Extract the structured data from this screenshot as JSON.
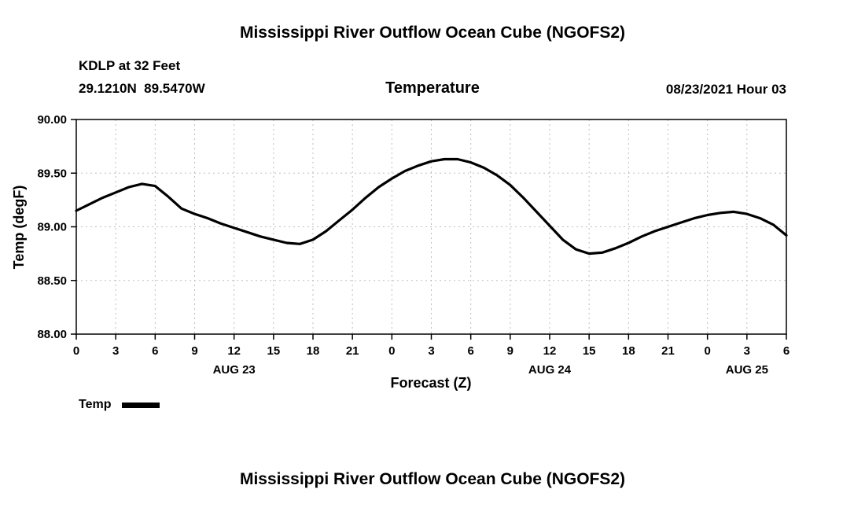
{
  "page": {
    "top_title": "Mississippi River Outflow Ocean Cube (NGOFS2)",
    "bottom_title": "Mississippi River Outflow Ocean Cube (NGOFS2)"
  },
  "header": {
    "station": "KDLP at 32 Feet",
    "coordinates": "29.1210N  89.5470W",
    "chart_title": "Temperature",
    "timestamp": "08/23/2021 Hour 03"
  },
  "legend": {
    "label": "Temp"
  },
  "chart_data": {
    "type": "line",
    "title": "Temperature",
    "xlabel": "Forecast (Z)",
    "ylabel": "Temp (degF)",
    "ylim": [
      88.0,
      90.0
    ],
    "ytick_values": [
      88.0,
      88.5,
      89.0,
      89.5,
      90.0
    ],
    "ytick_labels": [
      "88.00",
      "88.50",
      "89.00",
      "89.50",
      "90.00"
    ],
    "xlim": [
      0,
      54
    ],
    "xtick_values": [
      0,
      3,
      6,
      9,
      12,
      15,
      18,
      21,
      24,
      27,
      30,
      33,
      36,
      39,
      42,
      45,
      48,
      51,
      54
    ],
    "xtick_labels": [
      "0",
      "3",
      "6",
      "9",
      "12",
      "15",
      "18",
      "21",
      "0",
      "3",
      "6",
      "9",
      "12",
      "15",
      "18",
      "21",
      "0",
      "3",
      "6"
    ],
    "date_labels": [
      {
        "label": "AUG 23",
        "hour": 12
      },
      {
        "label": "AUG 24",
        "hour": 36
      },
      {
        "label": "AUG 25",
        "hour": 51
      }
    ],
    "grid": true,
    "legend_position": "bottom-left",
    "line_color": "#000000",
    "series": [
      {
        "name": "Temp",
        "x": [
          0,
          1,
          2,
          3,
          4,
          5,
          6,
          7,
          8,
          9,
          10,
          11,
          12,
          13,
          14,
          15,
          16,
          17,
          18,
          19,
          20,
          21,
          22,
          23,
          24,
          25,
          26,
          27,
          28,
          29,
          30,
          31,
          32,
          33,
          34,
          35,
          36,
          37,
          38,
          39,
          40,
          41,
          42,
          43,
          44,
          45,
          46,
          47,
          48,
          49,
          50,
          51,
          52,
          53,
          54
        ],
        "y": [
          89.15,
          89.21,
          89.27,
          89.32,
          89.37,
          89.4,
          89.38,
          89.28,
          89.17,
          89.12,
          89.08,
          89.03,
          88.99,
          88.95,
          88.91,
          88.88,
          88.85,
          88.84,
          88.88,
          88.96,
          89.06,
          89.16,
          89.27,
          89.37,
          89.45,
          89.52,
          89.57,
          89.61,
          89.63,
          89.63,
          89.6,
          89.55,
          89.48,
          89.39,
          89.27,
          89.14,
          89.01,
          88.88,
          88.79,
          88.75,
          88.76,
          88.8,
          88.85,
          88.91,
          88.96,
          89.0,
          89.04,
          89.08,
          89.11,
          89.13,
          89.14,
          89.12,
          89.08,
          89.02,
          88.92
        ]
      }
    ]
  }
}
